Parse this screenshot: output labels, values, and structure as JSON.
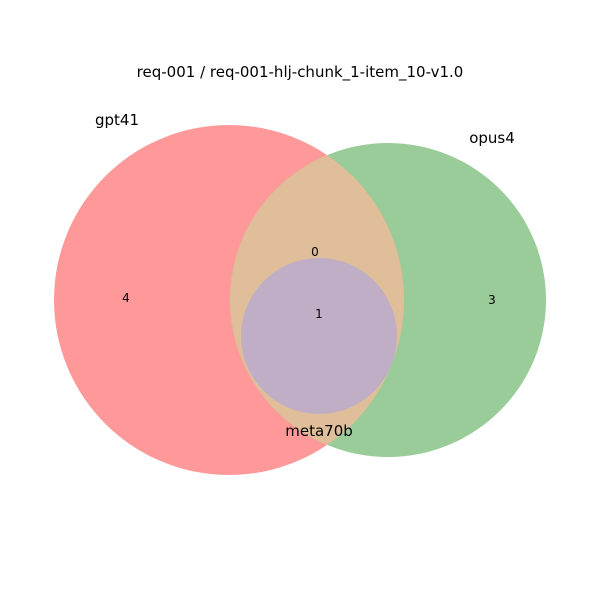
{
  "title": "req-001 / req-001-hlj-chunk_1-item_10-v1.0",
  "sets": [
    {
      "name": "gpt41",
      "color": "#ff9999"
    },
    {
      "name": "opus4",
      "color": "#99cc99"
    },
    {
      "name": "meta70b",
      "color": "#c0aec6"
    }
  ],
  "regions": {
    "gpt41_only": "4",
    "opus4_only": "3",
    "gpt41_opus4": "0",
    "all_three": "1"
  },
  "colors": {
    "gpt41_opus4_overlap": "#e0be99"
  }
}
